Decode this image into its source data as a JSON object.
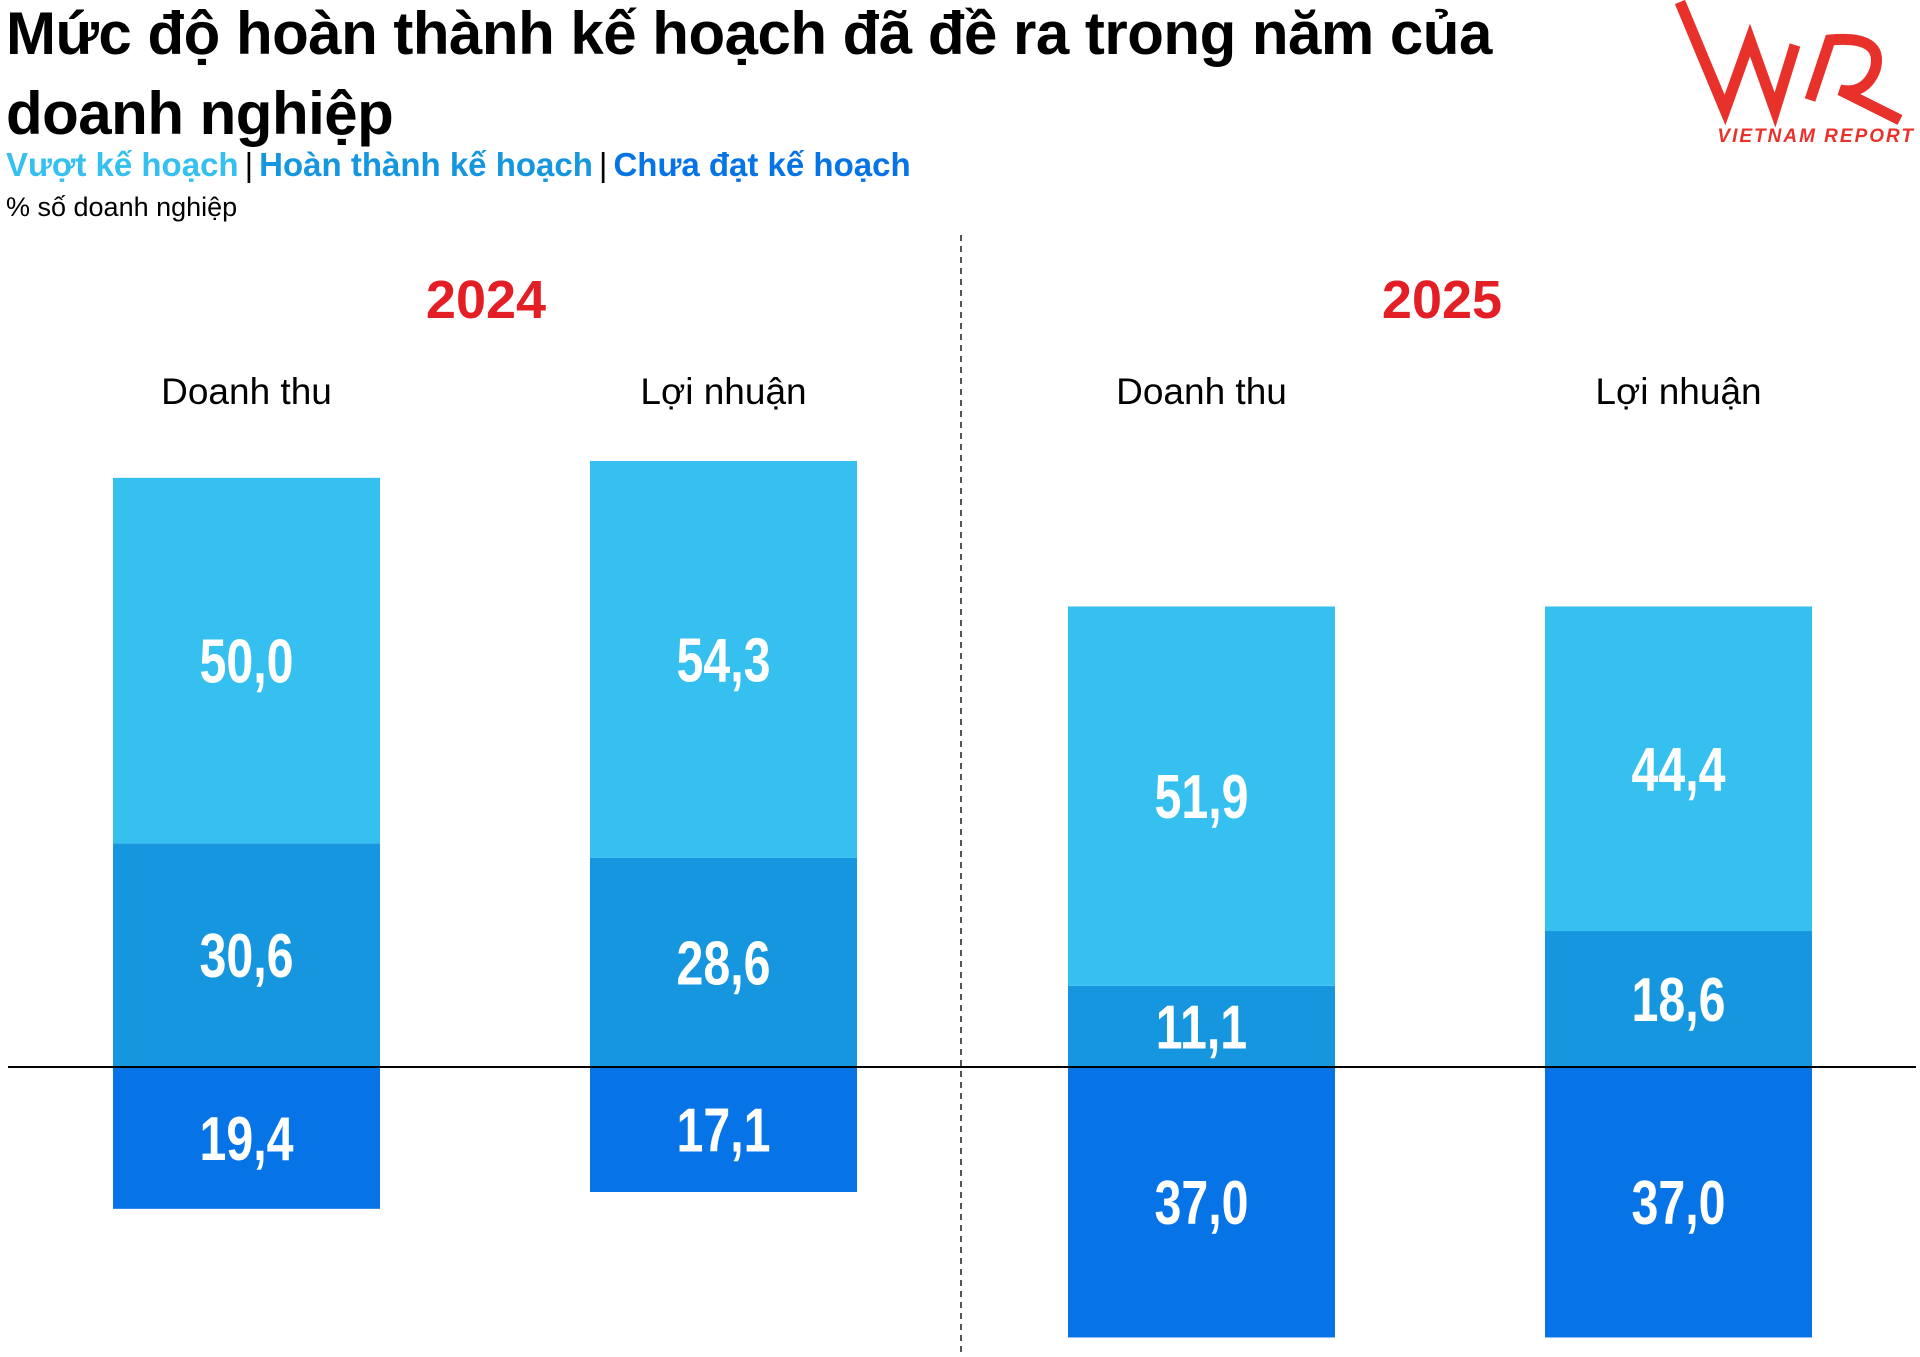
{
  "title": "Mức độ hoàn thành kế hoạch đã đề ra trong năm của doanh nghiệp",
  "logo": {
    "text": "VNR",
    "subtext": "VIETNAM REPORT",
    "color": "#e8312a"
  },
  "chart_data": {
    "type": "bar",
    "stacked": true,
    "unit_label": "% số doanh nghiệp",
    "groups": [
      {
        "label": "2024",
        "categories": [
          "Doanh thu",
          "Lợi nhuận"
        ]
      },
      {
        "label": "2025",
        "categories": [
          "Doanh thu",
          "Lợi nhuận"
        ]
      }
    ],
    "series": [
      {
        "name": "Vượt kế hoạch",
        "color": "#35c0f0",
        "direction": "up",
        "values": [
          [
            50.0,
            54.3
          ],
          [
            51.9,
            44.4
          ]
        ],
        "labels": [
          [
            "50,0",
            "54,3"
          ],
          [
            "51,9",
            "44,4"
          ]
        ]
      },
      {
        "name": "Hoàn thành kế hoạch",
        "color": "#1596de",
        "direction": "up",
        "values": [
          [
            30.6,
            28.6
          ],
          [
            11.1,
            18.6
          ]
        ],
        "labels": [
          [
            "30,6",
            "28,6"
          ],
          [
            "11,1",
            "18,6"
          ]
        ]
      },
      {
        "name": "Chưa đạt kế hoạch",
        "color": "#0673e6",
        "direction": "down",
        "values": [
          [
            19.4,
            17.1
          ],
          [
            37.0,
            37.0
          ]
        ],
        "labels": [
          [
            "19,4",
            "17,1"
          ],
          [
            "37,0",
            "37,0"
          ]
        ]
      }
    ],
    "year_color": "#e31e24",
    "legend": "top-left",
    "grid": false
  }
}
